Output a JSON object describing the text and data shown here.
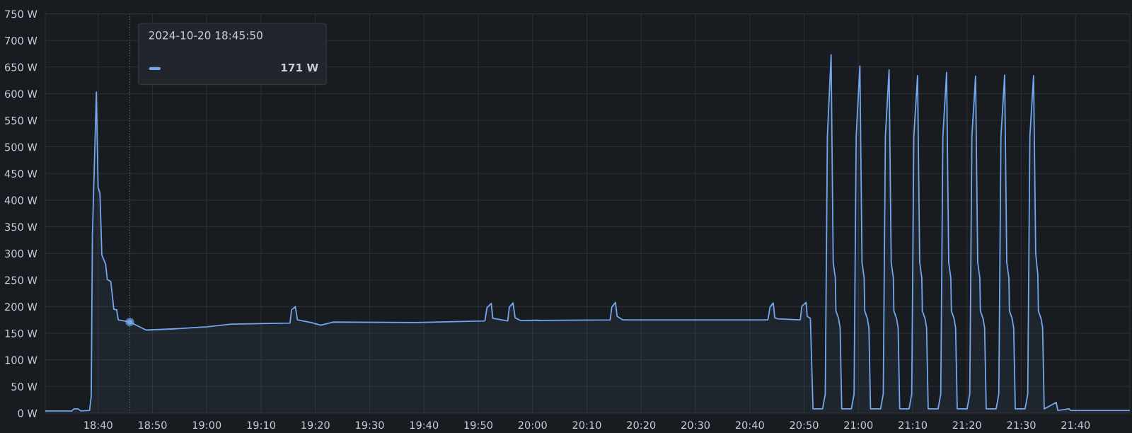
{
  "chart_data": {
    "type": "area",
    "grid": true,
    "legend": false,
    "marker": "none",
    "line_style": "solid",
    "xlim": [
      18.5044,
      21.8329
    ],
    "ylim": [
      0,
      750
    ],
    "xticks": [
      {
        "value": 18.6667,
        "label": "18:40"
      },
      {
        "value": 18.8333,
        "label": "18:50"
      },
      {
        "value": 19.0,
        "label": "19:00"
      },
      {
        "value": 19.1667,
        "label": "19:10"
      },
      {
        "value": 19.3333,
        "label": "19:20"
      },
      {
        "value": 19.5,
        "label": "19:30"
      },
      {
        "value": 19.6667,
        "label": "19:40"
      },
      {
        "value": 19.8333,
        "label": "19:50"
      },
      {
        "value": 20.0,
        "label": "20:00"
      },
      {
        "value": 20.1667,
        "label": "20:10"
      },
      {
        "value": 20.3333,
        "label": "20:20"
      },
      {
        "value": 20.5,
        "label": "20:30"
      },
      {
        "value": 20.6667,
        "label": "20:40"
      },
      {
        "value": 20.8333,
        "label": "20:50"
      },
      {
        "value": 21.0,
        "label": "21:00"
      },
      {
        "value": 21.1667,
        "label": "21:10"
      },
      {
        "value": 21.3333,
        "label": "21:20"
      },
      {
        "value": 21.5,
        "label": "21:30"
      },
      {
        "value": 21.6667,
        "label": "21:40"
      }
    ],
    "yticks": [
      {
        "value": 0,
        "label": "0 W"
      },
      {
        "value": 50,
        "label": "50 W"
      },
      {
        "value": 100,
        "label": "100 W"
      },
      {
        "value": 150,
        "label": "150 W"
      },
      {
        "value": 200,
        "label": "200 W"
      },
      {
        "value": 250,
        "label": "250 W"
      },
      {
        "value": 300,
        "label": "300 W"
      },
      {
        "value": 350,
        "label": "350 W"
      },
      {
        "value": 400,
        "label": "400 W"
      },
      {
        "value": 450,
        "label": "450 W"
      },
      {
        "value": 500,
        "label": "500 W"
      },
      {
        "value": 550,
        "label": "550 W"
      },
      {
        "value": 600,
        "label": "600 W"
      },
      {
        "value": 650,
        "label": "650 W"
      },
      {
        "value": 700,
        "label": "700 W"
      },
      {
        "value": 750,
        "label": "750 W"
      }
    ],
    "ref_lines": [
      {
        "axis": "x",
        "value": 18.7639,
        "label": null,
        "color": "#5a5d63",
        "line_style": "dotted"
      }
    ],
    "annotations": [
      "2024-10-20 18:45:50",
      "171 W"
    ],
    "series": [
      {
        "color": "#73a6ec",
        "x": [
          18.5044,
          18.5857,
          18.5922,
          18.6052,
          18.6133,
          18.6403,
          18.6455,
          18.649,
          18.6612,
          18.6665,
          18.6722,
          18.678,
          18.6895,
          18.6947,
          18.7055,
          18.7148,
          18.7235,
          18.7285,
          18.7639,
          18.814,
          18.892,
          19.0012,
          19.0745,
          19.2555,
          19.2603,
          19.2718,
          19.2783,
          19.3207,
          19.35,
          19.3892,
          19.6402,
          19.8537,
          19.8602,
          19.8732,
          19.878,
          19.9237,
          19.9287,
          19.94,
          19.9465,
          19.9628,
          20.2383,
          20.2432,
          20.2545,
          20.2595,
          20.2773,
          20.7223,
          20.7288,
          20.7387,
          20.7435,
          20.7533,
          20.8217,
          20.8267,
          20.8397,
          20.843,
          20.8527,
          20.8608,
          20.8902,
          20.8984,
          20.9049,
          20.9163,
          20.9228,
          20.9293,
          20.931,
          20.9391,
          20.944,
          20.9489,
          20.9786,
          20.9868,
          20.9933,
          21.0047,
          21.0112,
          21.0177,
          21.0194,
          21.0275,
          21.0324,
          21.0373,
          21.0682,
          21.0764,
          21.0829,
          21.0943,
          21.1008,
          21.1073,
          21.109,
          21.1171,
          21.122,
          21.1269,
          21.1556,
          21.1638,
          21.1703,
          21.1817,
          21.1882,
          21.1947,
          21.1964,
          21.2045,
          21.2094,
          21.2143,
          21.2447,
          21.2529,
          21.2594,
          21.2708,
          21.2773,
          21.2838,
          21.2855,
          21.2936,
          21.2985,
          21.3034,
          21.3337,
          21.3419,
          21.3484,
          21.3598,
          21.3663,
          21.3728,
          21.3745,
          21.3826,
          21.3875,
          21.3924,
          21.4229,
          21.4311,
          21.4376,
          21.449,
          21.4555,
          21.462,
          21.4637,
          21.4718,
          21.4767,
          21.4816,
          21.5117,
          21.5199,
          21.5264,
          21.5378,
          21.5443,
          21.5508,
          21.5525,
          21.5606,
          21.5655,
          21.5704,
          21.6073,
          21.6123,
          21.6465,
          21.6513,
          21.8329
        ],
        "values": [
          4,
          4,
          8,
          8,
          4,
          5,
          32,
          333,
          603,
          424,
          413,
          297,
          280,
          251,
          247,
          195,
          194,
          175,
          171,
          156,
          158,
          162,
          167,
          169,
          194,
          200,
          175,
          170,
          165,
          171,
          170,
          173,
          198,
          206,
          178,
          173,
          199,
          207,
          179,
          174,
          175,
          199,
          208,
          182,
          175,
          175,
          199,
          207,
          179,
          177,
          175,
          201,
          208,
          182,
          178,
          8,
          8,
          36,
          520,
          673,
          283,
          254,
          192,
          178,
          160,
          8,
          8,
          36,
          520,
          652,
          283,
          254,
          192,
          178,
          160,
          8,
          8,
          36,
          520,
          645,
          283,
          254,
          192,
          178,
          160,
          8,
          8,
          36,
          520,
          634,
          283,
          254,
          192,
          178,
          160,
          8,
          8,
          36,
          520,
          640,
          283,
          254,
          192,
          178,
          160,
          8,
          8,
          36,
          520,
          633,
          283,
          254,
          192,
          178,
          160,
          8,
          8,
          36,
          520,
          635,
          283,
          254,
          192,
          178,
          160,
          8,
          8,
          36,
          520,
          634,
          300,
          260,
          192,
          178,
          160,
          8,
          20,
          5,
          8,
          5,
          5
        ]
      }
    ]
  }
}
